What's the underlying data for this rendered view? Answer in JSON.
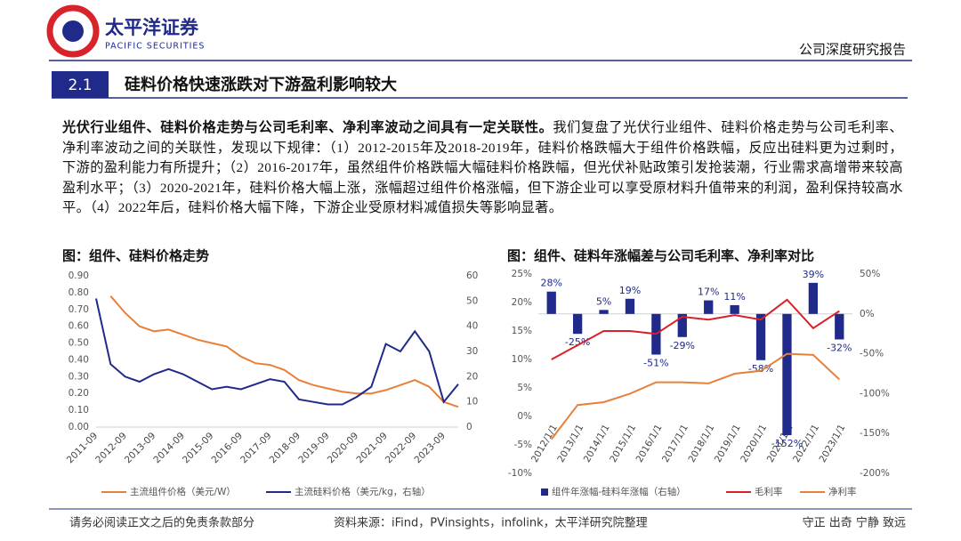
{
  "header": {
    "brand": "太平洋证券",
    "brand_en": "PACIFIC SECURITIES",
    "report_type": "公司深度研究报告"
  },
  "section": {
    "number": "2.1",
    "title": "硅料价格快速涨跌对下游盈利影响较大"
  },
  "paragraph": {
    "lead": "光伏行业组件、硅料价格走势与公司毛利率、净利率波动之间具有一定关联性。",
    "body": "我们复盘了光伏行业组件、硅料价格走势与公司毛利率、净利率波动之间的关联性，发现以下规律：（1）2012-2015年及2018-2019年，硅料价格跌幅大于组件价格跌幅，反应出硅料更为过剩时，下游的盈利能力有所提升；（2）2016-2017年，虽然组件价格跌幅大幅硅料价格跌幅，但光伏补贴政策引发抢装潮，行业需求高增带来较高盈利水平；（3）2020-2021年，硅料价格大幅上涨，涨幅超过组件价格涨幅，但下游企业可以享受原材料升值带来的利润，盈利保持较高水平。（4）2022年后，硅料价格大幅下降，下游企业受原材料减值损失等影响显著。"
  },
  "chart_data": [
    {
      "type": "line",
      "title": "图：组件、硅料价格走势",
      "x": [
        "2011-09",
        "2012-03",
        "2012-09",
        "2013-03",
        "2013-09",
        "2014-03",
        "2014-09",
        "2015-03",
        "2015-09",
        "2016-03",
        "2016-09",
        "2017-03",
        "2017-09",
        "2018-03",
        "2018-09",
        "2019-03",
        "2019-09",
        "2020-03",
        "2020-09",
        "2021-03",
        "2021-09",
        "2022-03",
        "2022-09",
        "2023-03",
        "2023-09",
        "2024-03"
      ],
      "xticks": [
        "2011-09",
        "2012-09",
        "2013-09",
        "2014-09",
        "2015-09",
        "2016-09",
        "2017-09",
        "2018-09",
        "2019-09",
        "2020-09",
        "2021-09",
        "2022-09",
        "2023-09"
      ],
      "series": [
        {
          "name": "主流组件价格（美元/W）",
          "color": "#e8803a",
          "values": [
            null,
            0.78,
            0.68,
            0.6,
            0.57,
            0.58,
            0.55,
            0.52,
            0.5,
            0.48,
            0.42,
            0.38,
            0.37,
            0.34,
            0.28,
            0.25,
            0.23,
            0.21,
            0.2,
            0.2,
            0.22,
            0.25,
            0.28,
            0.24,
            0.15,
            0.12
          ]
        },
        {
          "name": "主流硅料价格（美元/kg，右轴）",
          "color": "#1f2a8a",
          "axis": "y2",
          "values": [
            51,
            25,
            20,
            18,
            21,
            23,
            21,
            18,
            15,
            16,
            15,
            17,
            19,
            18,
            11,
            10,
            9,
            9,
            12,
            16,
            33,
            30,
            38,
            30,
            10,
            17
          ]
        }
      ],
      "ylim": [
        0,
        0.9
      ],
      "yticks": [
        {
          "value": 0,
          "label": "0.00"
        },
        {
          "value": 0.1,
          "label": "0.10"
        },
        {
          "value": 0.2,
          "label": "0.20"
        },
        {
          "value": 0.3,
          "label": "0.30"
        },
        {
          "value": 0.4,
          "label": "0.40"
        },
        {
          "value": 0.5,
          "label": "0.50"
        },
        {
          "value": 0.6,
          "label": "0.60"
        },
        {
          "value": 0.7,
          "label": "0.70"
        },
        {
          "value": 0.8,
          "label": "0.80"
        },
        {
          "value": 0.9,
          "label": "0.90"
        }
      ],
      "y2lim": [
        0,
        60
      ],
      "y2ticks": [
        0,
        10,
        20,
        30,
        40,
        50,
        60
      ]
    },
    {
      "type": "bar",
      "title": "图：组件、硅料年涨幅差与公司毛利率、净利率对比",
      "categories": [
        "2012/1/1",
        "2013/1/1",
        "2014/1/1",
        "2015/1/1",
        "2016/1/1",
        "2017/1/1",
        "2018/1/1",
        "2019/1/1",
        "2020/1/1",
        "2021/1/1",
        "2022/1/1",
        "2023/1/1"
      ],
      "series": [
        {
          "name": "组件年涨幅-硅料年涨幅（右轴）",
          "type": "bar",
          "color": "#1f2a8a",
          "axis": "y2",
          "values": [
            28,
            -25,
            5,
            19,
            -51,
            -29,
            17,
            11,
            -58,
            -152,
            39,
            -32
          ],
          "value_labels": [
            "28%",
            "-25%",
            "5%",
            "19%",
            "-51%",
            "-29%",
            "17%",
            "11%",
            "-58%",
            "-152%",
            "39%",
            "-32%"
          ]
        },
        {
          "name": "毛利率",
          "type": "line",
          "color": "#d9202a",
          "values": [
            10,
            12.5,
            15,
            15,
            14.5,
            17.5,
            17,
            17.8,
            17,
            20.5,
            15.5,
            18.5
          ]
        },
        {
          "name": "净利率",
          "type": "line",
          "color": "#e8803a",
          "values": [
            -4,
            2,
            2.5,
            4,
            6,
            6,
            5.8,
            7.5,
            8,
            11,
            10.8,
            6.5
          ]
        }
      ],
      "ylim": [
        -10,
        25
      ],
      "yticks": [
        {
          "value": -10,
          "label": "-10%"
        },
        {
          "value": -5,
          "label": "-5%"
        },
        {
          "value": 0,
          "label": "0%"
        },
        {
          "value": 5,
          "label": "5%"
        },
        {
          "value": 10,
          "label": "10%"
        },
        {
          "value": 15,
          "label": "15%"
        },
        {
          "value": 20,
          "label": "20%"
        },
        {
          "value": 25,
          "label": "25%"
        }
      ],
      "y2lim": [
        -200,
        50
      ],
      "y2ticks": [
        {
          "value": -200,
          "label": "-200%"
        },
        {
          "value": -150,
          "label": "-150%"
        },
        {
          "value": -100,
          "label": "-100%"
        },
        {
          "value": -50,
          "label": "-50%"
        },
        {
          "value": 0,
          "label": "0%"
        },
        {
          "value": 50,
          "label": "50%"
        }
      ]
    }
  ],
  "footer": {
    "disclaimer": "请务必阅读正文之后的免责条款部分",
    "source": "资料来源：iFind，PVinsights，infolink，太平洋研究院整理",
    "motto": "守正 出奇 宁静 致远"
  }
}
